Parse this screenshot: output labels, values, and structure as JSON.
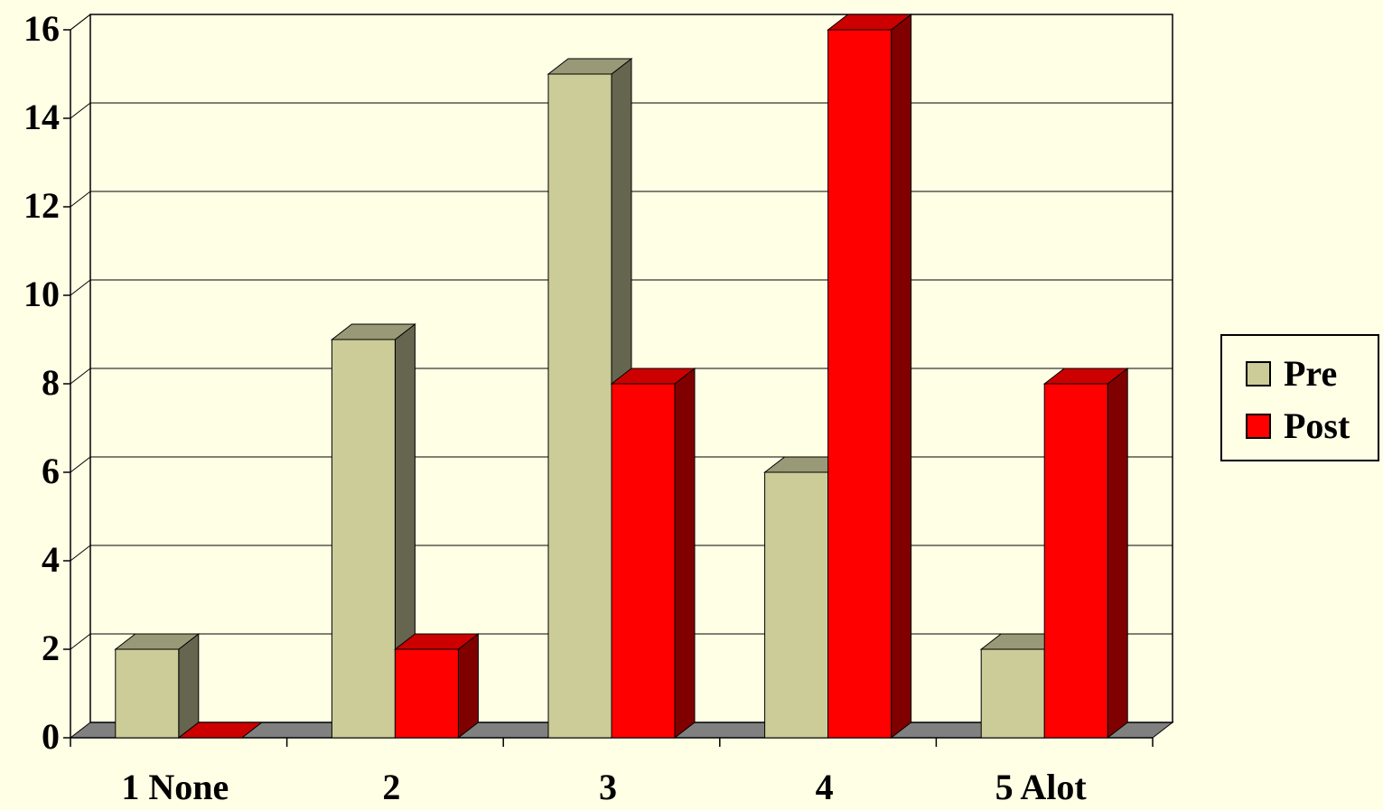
{
  "chart_data": {
    "type": "bar",
    "title": "",
    "xlabel": "",
    "ylabel": "",
    "categories": [
      "1 None",
      "2",
      "3",
      "4",
      "5 Alot"
    ],
    "series": [
      {
        "name": "Pre",
        "values": [
          2,
          9,
          15,
          6,
          2
        ]
      },
      {
        "name": "Post",
        "values": [
          0,
          2,
          8,
          16,
          8
        ]
      }
    ],
    "ylim": [
      0,
      16
    ],
    "yticks": [
      "0",
      "2",
      "4",
      "6",
      "8",
      "10",
      "12",
      "14",
      "16"
    ],
    "grid": true,
    "legend_position": "right",
    "style": "3d-clustered-column"
  },
  "colors": {
    "background": "#FFFFE6",
    "pre": {
      "front": "#CCCC99",
      "top": "#999977",
      "side": "#666650"
    },
    "post": {
      "front": "#FF0000",
      "top": "#CC0000",
      "side": "#800000"
    },
    "floor": "#808080",
    "grid": "#000000"
  },
  "legend": {
    "items": [
      {
        "label": "Pre"
      },
      {
        "label": "Post"
      }
    ]
  }
}
